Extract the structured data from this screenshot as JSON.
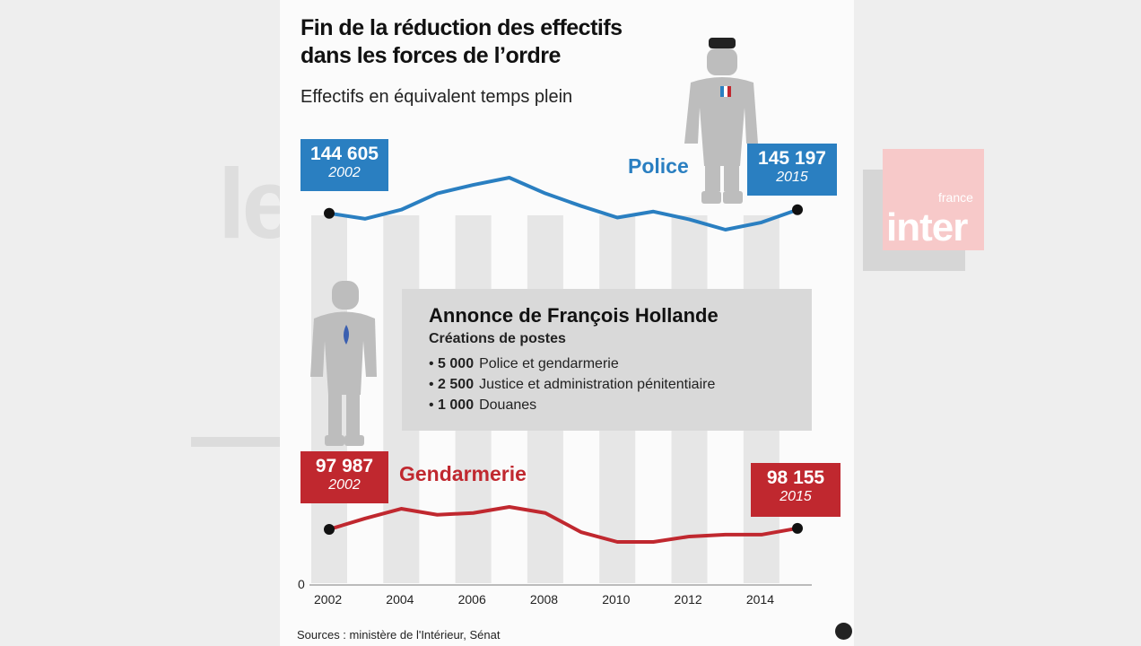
{
  "title_line1": "Fin de la réduction des effectifs",
  "title_line2": "dans les forces de l’ordre",
  "subtitle": "Effectifs en équivalent temps plein",
  "background_logo": {
    "text_small": "france",
    "text_large": "inter"
  },
  "background_text": "le",
  "colors": {
    "police": "#2a7fc1",
    "gendarmerie": "#c0282f",
    "bars": "#e6e6e6",
    "note_box": "#d9d9d9"
  },
  "icons": [
    "police-officer-figure-icon",
    "gendarme-figure-icon",
    "publisher-badge-icon"
  ],
  "note": {
    "title": "Annonce de François Hollande",
    "subtitle": "Créations de postes",
    "items": [
      {
        "value": "5 000",
        "label": "Police et gendarmerie"
      },
      {
        "value": "2 500",
        "label": "Justice et administration pénitentiaire"
      },
      {
        "value": "1 000",
        "label": "Douanes"
      }
    ]
  },
  "sources": "Sources : ministère de l'Intérieur, Sénat",
  "chart_data": {
    "type": "line",
    "axis_break": true,
    "y_zero_label": "0",
    "x": [
      2002,
      2003,
      2004,
      2005,
      2006,
      2007,
      2008,
      2009,
      2010,
      2011,
      2012,
      2013,
      2014,
      2015
    ],
    "x_tick_labels": [
      "2002",
      "2004",
      "2006",
      "2008",
      "2010",
      "2012",
      "2014"
    ],
    "grid": "alternating vertical bars",
    "series": [
      {
        "name": "Police",
        "values": [
          144605,
          143700,
          145200,
          147900,
          149300,
          150500,
          147900,
          145800,
          143900,
          144900,
          143600,
          141900,
          143100,
          145197
        ],
        "start_label": {
          "value": "144 605",
          "year": "2002"
        },
        "end_label": {
          "value": "145 197",
          "year": "2015"
        }
      },
      {
        "name": "Gendarmerie",
        "values": [
          97987,
          99800,
          101400,
          100400,
          100700,
          101700,
          100700,
          97500,
          95900,
          95900,
          96800,
          97100,
          97100,
          98155
        ],
        "start_label": {
          "value": "97 987",
          "year": "2002"
        },
        "end_label": {
          "value": "98 155",
          "year": "2015"
        }
      }
    ]
  }
}
